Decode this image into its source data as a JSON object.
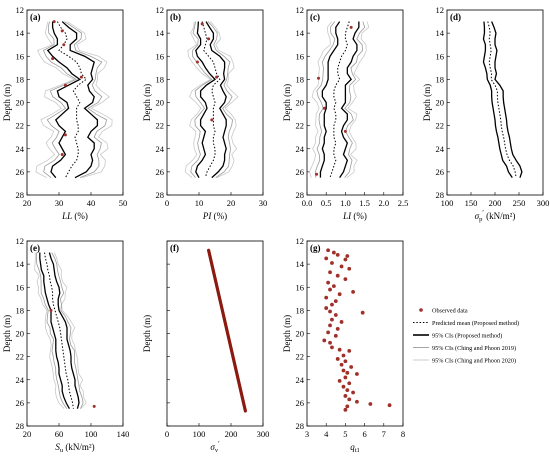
{
  "figure": {
    "colors": {
      "observed": "#a0302a",
      "mean": "#000000",
      "ci_proposed": "#000000",
      "ci_2019": "#9a9a9a",
      "ci_2020": "#c9c9c9",
      "red_line": "#8b1a10"
    }
  },
  "chart_data": [
    {
      "panel": "(a)",
      "type": "line",
      "ylabel": "Depth (m)",
      "xlabel": "LL",
      "xunit": " (%)",
      "xlim": [
        20,
        50
      ],
      "xticks": [
        20,
        30,
        40,
        50
      ],
      "ylim": [
        12,
        28
      ],
      "yticks": [
        12,
        14,
        16,
        18,
        20,
        22,
        24,
        26,
        28
      ],
      "show_yticklabels": true,
      "depth": [
        13,
        13.5,
        14,
        14.5,
        15,
        15.5,
        16,
        16.5,
        17,
        17.5,
        18,
        18.5,
        19,
        19.5,
        20,
        20.5,
        21,
        21.5,
        22,
        22.5,
        23,
        23.5,
        24,
        24.5,
        25,
        25.5,
        26,
        26.5
      ],
      "mean": [
        29.5,
        30.5,
        32,
        32.5,
        31.5,
        30,
        33,
        35.5,
        36.5,
        37,
        38.5,
        36,
        34.5,
        35.5,
        36.5,
        35.5,
        35.5,
        35.5,
        36,
        36,
        35,
        35.5,
        36,
        36,
        35.5,
        34,
        33,
        32
      ],
      "ci_width": [
        1.5,
        2.5,
        3.5,
        3,
        2,
        3.5,
        5,
        5.5,
        4,
        3,
        2,
        3,
        5,
        5.5,
        4,
        2.5,
        4.5,
        6.5,
        6,
        4,
        4,
        5.5,
        5,
        4,
        5,
        6,
        5.5,
        3
      ],
      "observed": [
        [
          28.5,
          13
        ],
        [
          31,
          13.8
        ],
        [
          31.5,
          15
        ],
        [
          28,
          16.2
        ],
        [
          37,
          17.8
        ],
        [
          32,
          18.5
        ],
        [
          32,
          22.8
        ],
        [
          31,
          24.5
        ]
      ],
      "stat_curves": true
    },
    {
      "panel": "(b)",
      "type": "line",
      "ylabel": "Depth (m)",
      "xlabel": "PI",
      "xunit": " (%)",
      "xlim": [
        0,
        30
      ],
      "xticks": [
        0,
        10,
        20,
        30
      ],
      "ylim": [
        12,
        28
      ],
      "yticks": [
        12,
        14,
        16,
        18,
        20,
        22,
        24,
        26,
        28
      ],
      "show_yticklabels": true,
      "depth": [
        13,
        13.5,
        14,
        14.5,
        15,
        15.5,
        16,
        16.5,
        17,
        17.5,
        18,
        18.5,
        19,
        19.5,
        20,
        20.5,
        21,
        21.5,
        22,
        22.5,
        23,
        23.5,
        24,
        24.5,
        25,
        25.5,
        26,
        26.5
      ],
      "mean": [
        11,
        11.5,
        12,
        12.5,
        12,
        11.5,
        13,
        14.5,
        15,
        15.5,
        16.5,
        14.5,
        14,
        14.5,
        15,
        14.5,
        14.5,
        14.5,
        14.5,
        15,
        14.5,
        14.5,
        15,
        15,
        14.5,
        13.5,
        12.5,
        12
      ],
      "ci_width": [
        1.2,
        1.8,
        2.5,
        2,
        1.5,
        2.5,
        3.5,
        3.5,
        3,
        2.2,
        1.5,
        2.2,
        3.5,
        4,
        3,
        2,
        3,
        4,
        4,
        3,
        3,
        3.5,
        3.5,
        3,
        3.5,
        4,
        3.5,
        2
      ],
      "observed": [
        [
          11,
          13.2
        ],
        [
          13,
          14.5
        ],
        [
          9.5,
          16.5
        ],
        [
          15.5,
          17.8
        ],
        [
          14,
          21.5
        ]
      ],
      "stat_curves": true
    },
    {
      "panel": "(c)",
      "type": "line",
      "ylabel": "Depth (m)",
      "xlabel": "LI",
      "xunit": " (%)",
      "xlim": [
        0.0,
        2.5
      ],
      "xticks": [
        0.0,
        0.5,
        1.0,
        1.5,
        2.0,
        2.5
      ],
      "ylim": [
        12,
        28
      ],
      "yticks": [
        12,
        14,
        16,
        18,
        20,
        22,
        24,
        26,
        28
      ],
      "show_yticklabels": true,
      "depth": [
        13,
        13.5,
        14,
        14.5,
        15,
        15.5,
        16,
        16.5,
        17,
        17.5,
        18,
        18.5,
        19,
        19.5,
        20,
        20.5,
        21,
        21.5,
        22,
        22.5,
        23,
        23.5,
        24,
        24.5,
        25,
        25.5,
        26,
        26.5
      ],
      "mean": [
        1.1,
        1.05,
        1.0,
        1.0,
        1.05,
        1.0,
        0.9,
        0.85,
        0.8,
        0.8,
        0.85,
        0.75,
        0.7,
        0.7,
        0.75,
        0.7,
        0.75,
        0.75,
        0.7,
        0.7,
        0.7,
        0.75,
        0.7,
        0.7,
        0.75,
        0.7,
        0.65,
        0.6
      ],
      "ci_width": [
        0.25,
        0.3,
        0.25,
        0.2,
        0.25,
        0.3,
        0.3,
        0.3,
        0.25,
        0.25,
        0.3,
        0.25,
        0.3,
        0.3,
        0.25,
        0.2,
        0.3,
        0.3,
        0.25,
        0.2,
        0.25,
        0.3,
        0.3,
        0.25,
        0.3,
        0.3,
        0.3,
        0.25
      ],
      "observed": [
        [
          1.15,
          13.5
        ],
        [
          0.3,
          17.9
        ],
        [
          0.45,
          20.5
        ],
        [
          1.0,
          22.5
        ],
        [
          0.25,
          26.2
        ]
      ],
      "stat_curves": true
    },
    {
      "panel": "(d)",
      "type": "line",
      "ylabel": "Depth (m)",
      "xlabel": "σ",
      "xsub": "p",
      "xsup": "′",
      "xunit": " (kN/m²)",
      "xlim": [
        100,
        300
      ],
      "xticks": [
        100,
        150,
        200,
        250,
        300
      ],
      "ylim": [
        12,
        28
      ],
      "yticks": [
        12,
        14,
        16,
        18,
        20,
        22,
        24,
        26,
        28
      ],
      "show_yticklabels": true,
      "depth": [
        13,
        13.5,
        14,
        14.5,
        15,
        15.5,
        16,
        16.5,
        17,
        17.5,
        18,
        18.5,
        19,
        19.5,
        20,
        20.5,
        21,
        21.5,
        22,
        22.5,
        23,
        23.5,
        24,
        24.5,
        25,
        25.5,
        26,
        26.5
      ],
      "mean": [
        185,
        188,
        190,
        188,
        190,
        192,
        190,
        188,
        190,
        193,
        192,
        200,
        205,
        205,
        206,
        208,
        210,
        212,
        213,
        215,
        218,
        220,
        222,
        225,
        230,
        238,
        242,
        244
      ],
      "ci_width": [
        8,
        10,
        12,
        12,
        10,
        12,
        12,
        12,
        10,
        10,
        8,
        10,
        12,
        12,
        12,
        12,
        12,
        12,
        12,
        12,
        12,
        12,
        12,
        12,
        14,
        14,
        14,
        8
      ],
      "observed": [],
      "stat_curves": false
    },
    {
      "panel": "(e)",
      "type": "line",
      "ylabel": "Depth (m)",
      "xlabel": "S",
      "xsub": "u",
      "xsup": "",
      "xunit": " (kN/m²)",
      "xlim": [
        20,
        140
      ],
      "xticks": [
        20,
        60,
        100,
        140
      ],
      "ylim": [
        12,
        28
      ],
      "yticks": [
        12,
        14,
        16,
        18,
        20,
        22,
        24,
        26,
        28
      ],
      "show_yticklabels": true,
      "depth": [
        13,
        13.5,
        14,
        14.5,
        15,
        15.5,
        16,
        16.5,
        17,
        17.5,
        18,
        18.5,
        19,
        19.5,
        20,
        20.5,
        21,
        21.5,
        22,
        22.5,
        23,
        23.5,
        24,
        24.5,
        25,
        25.5,
        26,
        26.5
      ],
      "mean": [
        42,
        43,
        45,
        46,
        48,
        49,
        51,
        52,
        52,
        53,
        55,
        57,
        59,
        61,
        62,
        63,
        64,
        65,
        66,
        67,
        68,
        69,
        71,
        72,
        73,
        75,
        77,
        78
      ],
      "ci_width": [
        6,
        7,
        8,
        8,
        7,
        8,
        9,
        9,
        7,
        6,
        5,
        7,
        9,
        9,
        8,
        7,
        8,
        9,
        9,
        8,
        8,
        9,
        9,
        8,
        9,
        9,
        8,
        5
      ],
      "observed": [
        [
          50,
          18
        ],
        [
          104,
          26.3
        ]
      ],
      "stat_curves": true
    },
    {
      "panel": "(f)",
      "type": "line",
      "ylabel": "Depth (m)",
      "xlabel": "σ",
      "xsub": "v",
      "xsup": "′",
      "xunit": "",
      "xlim": [
        0,
        300
      ],
      "xticks": [
        0,
        100,
        200,
        300
      ],
      "ylim": [
        12,
        28
      ],
      "yticks": [
        12,
        14,
        16,
        18,
        20,
        22,
        24,
        26,
        28
      ],
      "show_yticklabels": false,
      "depth": [
        12.8,
        26.7
      ],
      "mean": [
        130,
        245
      ],
      "ci_width": [
        0,
        0
      ],
      "observed": [],
      "stat_curves": false,
      "red_line": true
    },
    {
      "panel": "(g)",
      "type": "scatter",
      "ylabel": "Depth (m)",
      "xlabel": "q",
      "xsub": "t1",
      "xsup": "",
      "xunit": "",
      "xlim": [
        3,
        8
      ],
      "xticks": [
        3,
        4,
        5,
        6,
        7,
        8
      ],
      "ylim": [
        12,
        28
      ],
      "yticks": [
        12,
        14,
        16,
        18,
        20,
        22,
        24,
        26,
        28
      ],
      "show_yticklabels": true,
      "observed": [
        [
          4.1,
          12.8
        ],
        [
          4.4,
          13
        ],
        [
          4.6,
          13.2
        ],
        [
          5.1,
          13.3
        ],
        [
          4.0,
          13.5
        ],
        [
          5.0,
          13.6
        ],
        [
          4.3,
          13.9
        ],
        [
          4.8,
          14.2
        ],
        [
          5.2,
          14.4
        ],
        [
          4.2,
          14.7
        ],
        [
          4.6,
          15
        ],
        [
          5.0,
          15.3
        ],
        [
          4.1,
          15.6
        ],
        [
          4.4,
          15.9
        ],
        [
          4.2,
          16.2
        ],
        [
          4.7,
          16.6
        ],
        [
          5.4,
          16.4
        ],
        [
          4.0,
          16.9
        ],
        [
          4.5,
          17.2
        ],
        [
          4.3,
          17.5
        ],
        [
          4.0,
          17.8
        ],
        [
          4.2,
          18.1
        ],
        [
          5.9,
          18.2
        ],
        [
          4.5,
          18.4
        ],
        [
          4.3,
          18.8
        ],
        [
          4.8,
          19.0
        ],
        [
          4.2,
          19.3
        ],
        [
          4.6,
          19.6
        ],
        [
          4.1,
          19.9
        ],
        [
          4.5,
          20.2
        ],
        [
          3.9,
          20.6
        ],
        [
          4.2,
          20.8
        ],
        [
          4.3,
          21.2
        ],
        [
          4.7,
          21.4
        ],
        [
          5.2,
          21.5
        ],
        [
          4.9,
          21.9
        ],
        [
          4.6,
          22.2
        ],
        [
          5.0,
          22.4
        ],
        [
          4.8,
          22.7
        ],
        [
          5.3,
          22.9
        ],
        [
          4.9,
          23.2
        ],
        [
          5.1,
          23.4
        ],
        [
          5.6,
          23.5
        ],
        [
          5.0,
          23.8
        ],
        [
          4.7,
          24.1
        ],
        [
          5.2,
          24.3
        ],
        [
          4.9,
          24.6
        ],
        [
          5.1,
          24.9
        ],
        [
          5.4,
          25.1
        ],
        [
          5.0,
          25.4
        ],
        [
          5.2,
          25.7
        ],
        [
          5.6,
          25.9
        ],
        [
          6.3,
          26.1
        ],
        [
          7.3,
          26.2
        ],
        [
          5.1,
          26.3
        ],
        [
          5.0,
          26.6
        ]
      ],
      "stat_curves": false
    }
  ],
  "legend": {
    "items": [
      {
        "label": "Observed data",
        "kind": "dot"
      },
      {
        "label": "Predicted mean (Proposed method)",
        "kind": "dotted"
      },
      {
        "label": "95% CIs (Proposed method)",
        "kind": "thick"
      },
      {
        "label": "95% CIs (Ching and Phoon 2019)",
        "kind": "light"
      },
      {
        "label": "95% CIs (Ching and Phoon 2020)",
        "kind": "lighter"
      }
    ]
  }
}
